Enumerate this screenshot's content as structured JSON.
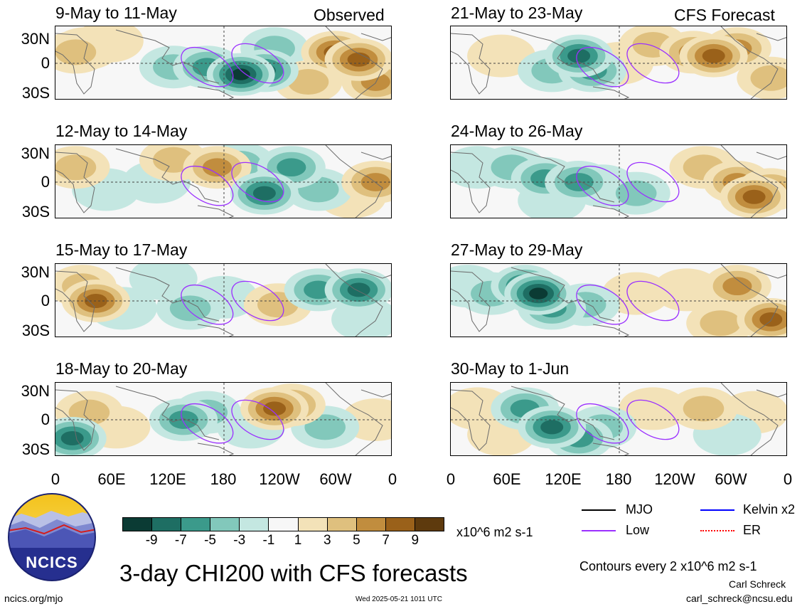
{
  "header_tags": {
    "left": "Observed",
    "right": "CFS Forecast"
  },
  "panels_left": [
    {
      "title": "9-May to 11-May"
    },
    {
      "title": "12-May to 14-May"
    },
    {
      "title": "15-May to 17-May"
    },
    {
      "title": "18-May to 20-May"
    }
  ],
  "panels_right": [
    {
      "title": "21-May to 23-May"
    },
    {
      "title": "24-May to 26-May"
    },
    {
      "title": "27-May to 29-May"
    },
    {
      "title": "30-May to 1-Jun"
    }
  ],
  "lat_labels": [
    "30N",
    "0",
    "30S"
  ],
  "lon_labels": [
    "0",
    "60E",
    "120E",
    "180",
    "120W",
    "60W",
    "0"
  ],
  "colorbar": {
    "labels": [
      "-9",
      "-7",
      "-5",
      "-3",
      "-1",
      "1",
      "3",
      "5",
      "7",
      "9"
    ],
    "colors": [
      "#0b3b34",
      "#1e6e63",
      "#3b9a8b",
      "#82c8bb",
      "#c4e7e1",
      "#f7f7f7",
      "#f3e2b8",
      "#dfc07e",
      "#c18d3e",
      "#9a611a",
      "#5e3a0d"
    ],
    "units": "x10^6 m2 s-1"
  },
  "legend": {
    "items": [
      {
        "label": "MJO",
        "color": "#000000"
      },
      {
        "label": "Kelvin x2",
        "color": "#0000ff"
      },
      {
        "label": "Low",
        "color": "#9b30ff"
      },
      {
        "label": "ER",
        "color": "#ff0000"
      }
    ]
  },
  "contour_note": "Contours every 2 x10^6 m2 s-1",
  "author": "Carl Schreck",
  "email": "carl_schreck@ncsu.edu",
  "title": "3-day CHI200 with CFS forecasts",
  "logo_text": "NCICS",
  "url": "ncics.org/mjo",
  "timestamp": "Wed 2025-05-21 1011 UTC"
}
